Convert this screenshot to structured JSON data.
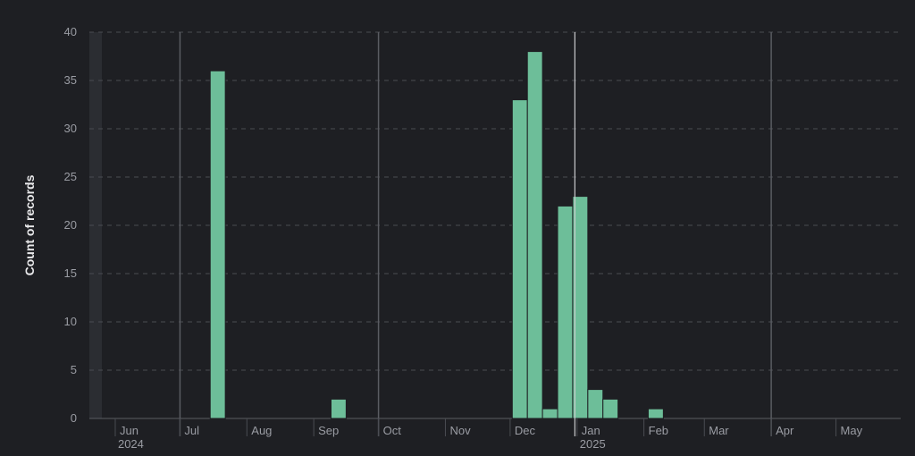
{
  "chart_data": {
    "type": "bar",
    "ylabel": "Count of records",
    "xlabel": "",
    "ylim": [
      0,
      40
    ],
    "yticks": [
      "0",
      "5",
      "10",
      "15",
      "20",
      "25",
      "30",
      "35",
      "40"
    ],
    "x_range": [
      "2024-05-20",
      "2025-05-31"
    ],
    "month_ticks": [
      {
        "date": "2024-06-01",
        "label": "Jun"
      },
      {
        "date": "2024-07-01",
        "label": "Jul"
      },
      {
        "date": "2024-08-01",
        "label": "Aug"
      },
      {
        "date": "2024-09-01",
        "label": "Sep"
      },
      {
        "date": "2024-10-01",
        "label": "Oct"
      },
      {
        "date": "2024-11-01",
        "label": "Nov"
      },
      {
        "date": "2024-12-01",
        "label": "Dec"
      },
      {
        "date": "2025-01-01",
        "label": "Jan"
      },
      {
        "date": "2025-02-01",
        "label": "Feb"
      },
      {
        "date": "2025-03-01",
        "label": "Mar"
      },
      {
        "date": "2025-04-01",
        "label": "Apr"
      },
      {
        "date": "2025-05-01",
        "label": "May"
      }
    ],
    "year_labels": [
      {
        "date": "2024-06-01",
        "label": "2024"
      },
      {
        "date": "2025-01-01",
        "label": "2025"
      }
    ],
    "quarter_lines": [
      "2024-07-01",
      "2024-10-01",
      "2025-04-01"
    ],
    "highlight_date": "2024-12-31",
    "bar_color": "#6dbe99",
    "series": [
      {
        "x": [
          "2024-07-15",
          "2024-09-09",
          "2024-12-02",
          "2024-12-09",
          "2024-12-16",
          "2024-12-23",
          "2024-12-30",
          "2025-01-06",
          "2025-01-13",
          "2025-02-03"
        ],
        "values": [
          36,
          2,
          33,
          38,
          1,
          22,
          23,
          3,
          2,
          1
        ]
      }
    ],
    "grid": true
  }
}
